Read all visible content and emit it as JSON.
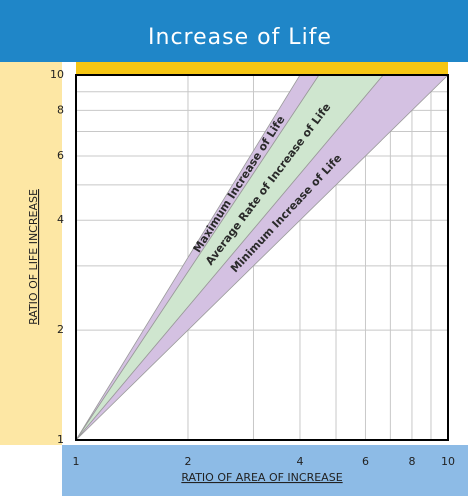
{
  "chart_data": {
    "type": "band",
    "title": "Increase of Life",
    "xlabel": "RATIO OF AREA OF INCREASE",
    "ylabel": "RATIO OF LIFE INCREASE",
    "xscale": "log",
    "yscale": "log",
    "xlim": [
      1,
      10
    ],
    "ylim": [
      1,
      10
    ],
    "xticks": [
      1,
      2,
      4,
      6,
      8,
      10
    ],
    "yticks": [
      1,
      2,
      4,
      6,
      8,
      10
    ],
    "xgrid": [
      3,
      5,
      7,
      9
    ],
    "ygrid": [
      3,
      5,
      7,
      9
    ],
    "series": [
      {
        "name": "Maximum Increase of Life",
        "color": "#d4c1e2",
        "values": [
          4,
          4.5
        ]
      },
      {
        "name": "Average Rate of Increase of Life",
        "color": "#cfe6cf",
        "values": [
          4.5,
          6.7
        ]
      },
      {
        "name": "Minimum Increase of Life",
        "color": "#d4c1e2",
        "values": [
          6.7,
          10
        ]
      }
    ]
  }
}
